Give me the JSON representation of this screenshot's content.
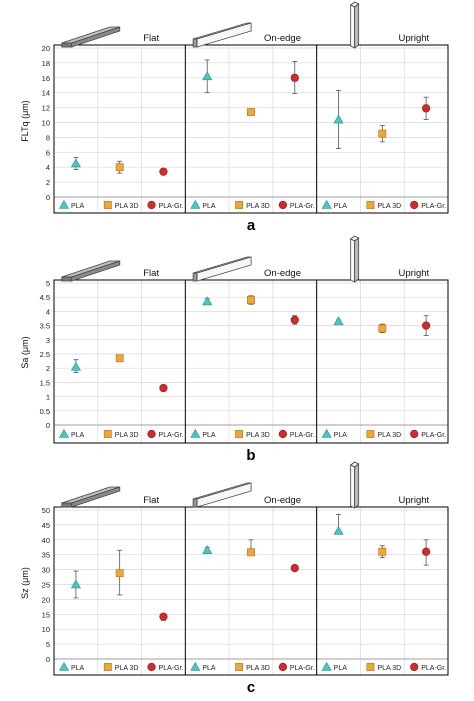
{
  "panels": [
    {
      "label": "a",
      "ylabel": "FLTq (μm)",
      "ylim": [
        0,
        20
      ],
      "ystep": 2,
      "yticks": [
        "0",
        "2",
        "4",
        "6",
        "8",
        "10",
        "12",
        "14",
        "16",
        "18",
        "20"
      ],
      "groups": [
        "Flat",
        "On-edge",
        "Upright"
      ],
      "categories": [
        "PLA",
        "PLA 3D",
        "PLA-Gr."
      ],
      "chart_data": {
        "type": "scatter",
        "groups": [
          "Flat",
          "On-edge",
          "Upright"
        ],
        "categories": [
          "PLA",
          "PLA 3D",
          "PLA-Gr."
        ],
        "series": [
          {
            "name": "PLA",
            "mean": [
              4.5,
              16.2,
              10.4
            ],
            "low": [
              3.7,
              14.0,
              6.5
            ],
            "high": [
              5.3,
              18.4,
              14.3
            ]
          },
          {
            "name": "PLA 3D",
            "mean": [
              4.0,
              11.4,
              8.5
            ],
            "low": [
              3.2,
              11.0,
              7.4
            ],
            "high": [
              4.8,
              11.8,
              9.6
            ]
          },
          {
            "name": "PLA-Gr.",
            "mean": [
              3.4,
              16.0,
              11.9
            ],
            "low": [
              3.1,
              13.9,
              10.4
            ],
            "high": [
              3.7,
              18.2,
              13.4
            ]
          }
        ]
      }
    },
    {
      "label": "b",
      "ylabel": "Sa (μm)",
      "ylim": [
        0,
        5
      ],
      "ystep": 0.5,
      "yticks": [
        "0",
        "0.5",
        "1",
        "1.5",
        "2",
        "2.5",
        "3",
        "3.5",
        "4",
        "4.5",
        "5"
      ],
      "groups": [
        "Flat",
        "On-edge",
        "Upright"
      ],
      "categories": [
        "PLA",
        "PLA 3D",
        "PLA-Gr."
      ],
      "chart_data": {
        "type": "scatter",
        "groups": [
          "Flat",
          "On-edge",
          "Upright"
        ],
        "categories": [
          "PLA",
          "PLA 3D",
          "PLA-Gr."
        ],
        "series": [
          {
            "name": "PLA",
            "mean": [
              2.05,
              4.35,
              3.65
            ],
            "low": [
              1.85,
              4.25,
              3.6
            ],
            "high": [
              2.3,
              4.45,
              3.7
            ]
          },
          {
            "name": "PLA 3D",
            "mean": [
              2.35,
              4.4,
              3.4
            ],
            "low": [
              2.25,
              4.25,
              3.25
            ],
            "high": [
              2.45,
              4.55,
              3.55
            ]
          },
          {
            "name": "PLA-Gr.",
            "mean": [
              1.3,
              3.7,
              3.5
            ],
            "low": [
              1.25,
              3.55,
              3.15
            ],
            "high": [
              1.35,
              3.85,
              3.85
            ]
          }
        ]
      }
    },
    {
      "label": "c",
      "ylabel": "Sz (μm)",
      "ylim": [
        0,
        50
      ],
      "ystep": 5,
      "yticks": [
        "0",
        "5",
        "10",
        "15",
        "20",
        "25",
        "30",
        "35",
        "40",
        "45",
        "50"
      ],
      "groups": [
        "Flat",
        "On-edge",
        "Upright"
      ],
      "categories": [
        "PLA",
        "PLA 3D",
        "PLA-Gr."
      ],
      "chart_data": {
        "type": "scatter",
        "groups": [
          "Flat",
          "On-edge",
          "Upright"
        ],
        "categories": [
          "PLA",
          "PLA 3D",
          "PLA-Gr."
        ],
        "series": [
          {
            "name": "PLA",
            "mean": [
              25.0,
              36.5,
              43.0
            ],
            "low": [
              20.5,
              35.5,
              43.0
            ],
            "high": [
              29.5,
              37.5,
              48.5
            ]
          },
          {
            "name": "PLA 3D",
            "mean": [
              28.8,
              35.8,
              36.0
            ],
            "low": [
              21.5,
              35.8,
              34.0
            ],
            "high": [
              36.5,
              40.0,
              38.0
            ]
          },
          {
            "name": "PLA-Gr.",
            "mean": [
              14.2,
              30.5,
              36.0
            ],
            "low": [
              13.0,
              30.0,
              31.5
            ],
            "high": [
              15.0,
              31.0,
              40.0
            ]
          }
        ]
      }
    }
  ],
  "colors": {
    "PLA": "#45c9c3",
    "PLA 3D": "#f0a634",
    "PLA-Gr.": "#d42a2a",
    "errorbar": "#555555",
    "grid": "#d9d9d9",
    "frame": "#000000"
  },
  "markers": {
    "PLA": "triangle",
    "PLA 3D": "square",
    "PLA-Gr.": "circle"
  },
  "icons": [
    "flat-specimen-icon",
    "on-edge-specimen-icon",
    "upright-specimen-icon"
  ]
}
